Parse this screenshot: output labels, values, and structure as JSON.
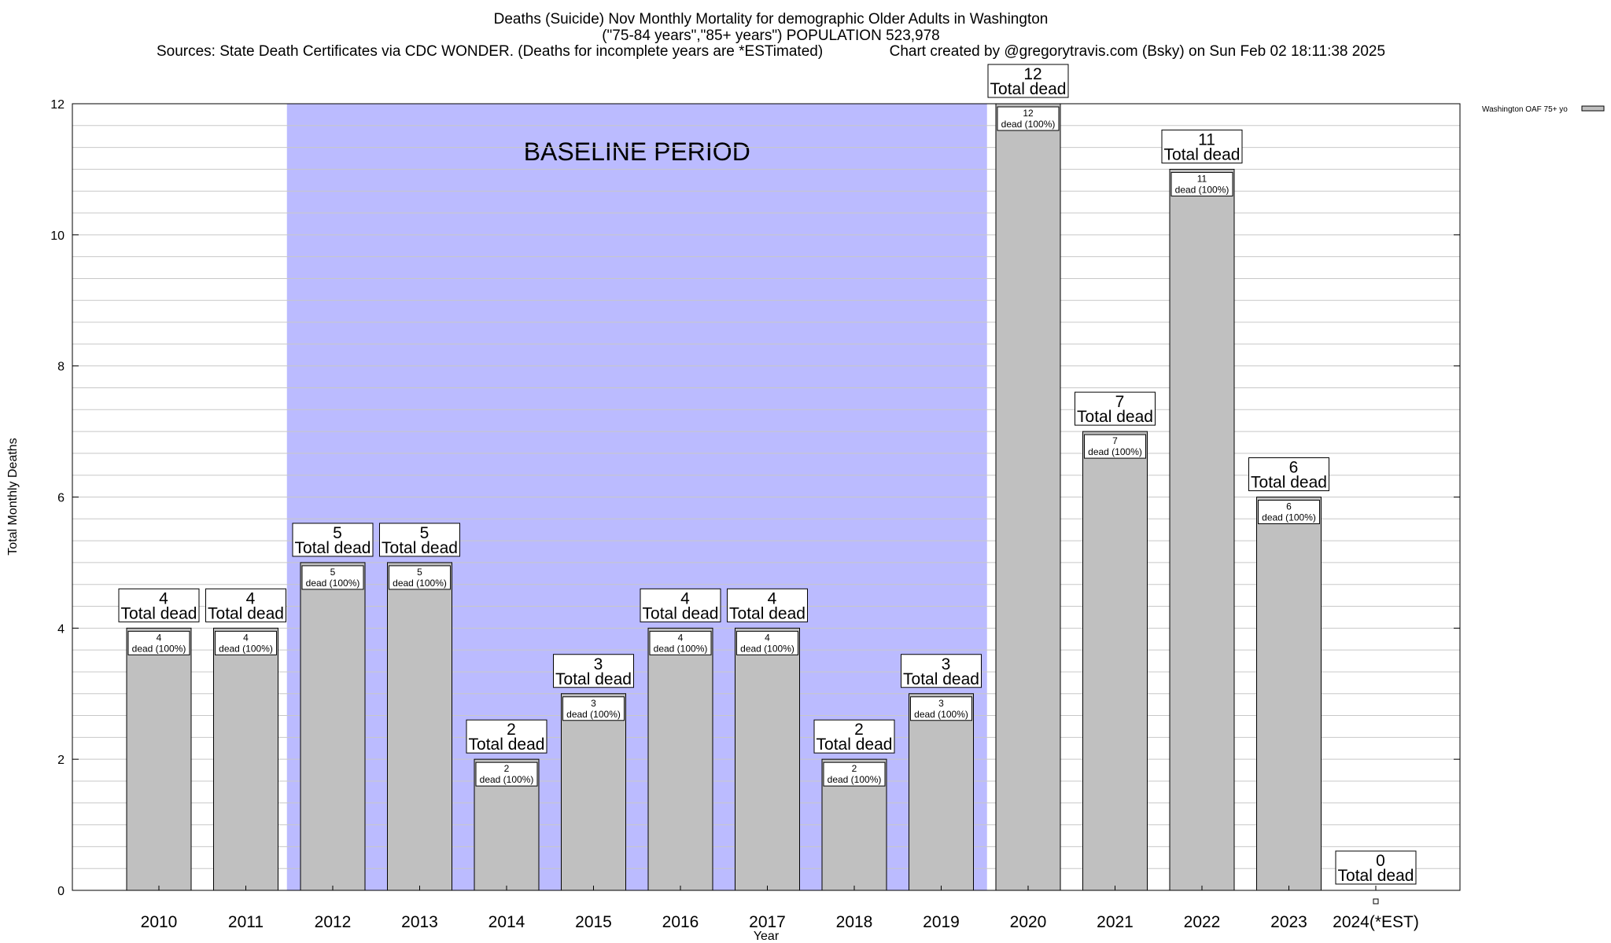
{
  "header": {
    "line1": "Deaths (Suicide) Nov Monthly Mortality for demographic Older Adults in Washington",
    "line2": "(\"75-84 years\",\"85+ years\") POPULATION 523,978",
    "line3": "Sources: State Death Certificates via CDC WONDER. (Deaths for incomplete years are *ESTimated)                Chart created by @gregorytravis.com (Bsky) on Sun Feb 02 18:11:38 2025"
  },
  "chart_data": {
    "type": "bar",
    "title": "Deaths (Suicide) Nov Monthly Mortality for demographic Older Adults in Washington",
    "xlabel": "Year",
    "ylabel": "Total Monthly Deaths",
    "ylim": [
      0,
      12
    ],
    "yticks": [
      "0",
      "2",
      "4",
      "6",
      "8",
      "10",
      "12"
    ],
    "grid": true,
    "legend_position": "top-right",
    "baseline_label": "BASELINE PERIOD",
    "baseline_range": [
      "2012",
      "2019"
    ],
    "total_label": "Total dead",
    "inner_label": "dead (100%)",
    "categories": [
      "2010",
      "2011",
      "2012",
      "2013",
      "2014",
      "2015",
      "2016",
      "2017",
      "2018",
      "2019",
      "2020",
      "2021",
      "2022",
      "2023",
      "2024(*EST)"
    ],
    "series": [
      {
        "name": "Washington OAF 75+ yo",
        "values": [
          4,
          4,
          5,
          5,
          2,
          3,
          4,
          4,
          2,
          3,
          12,
          7,
          11,
          6,
          0
        ]
      }
    ],
    "colors": {
      "bar_fill": "#c0c0c0",
      "baseline_fill": "#bbbbff",
      "grid": "#c8c8c8",
      "label_bg": "#ffffff",
      "axis": "#000000"
    }
  }
}
